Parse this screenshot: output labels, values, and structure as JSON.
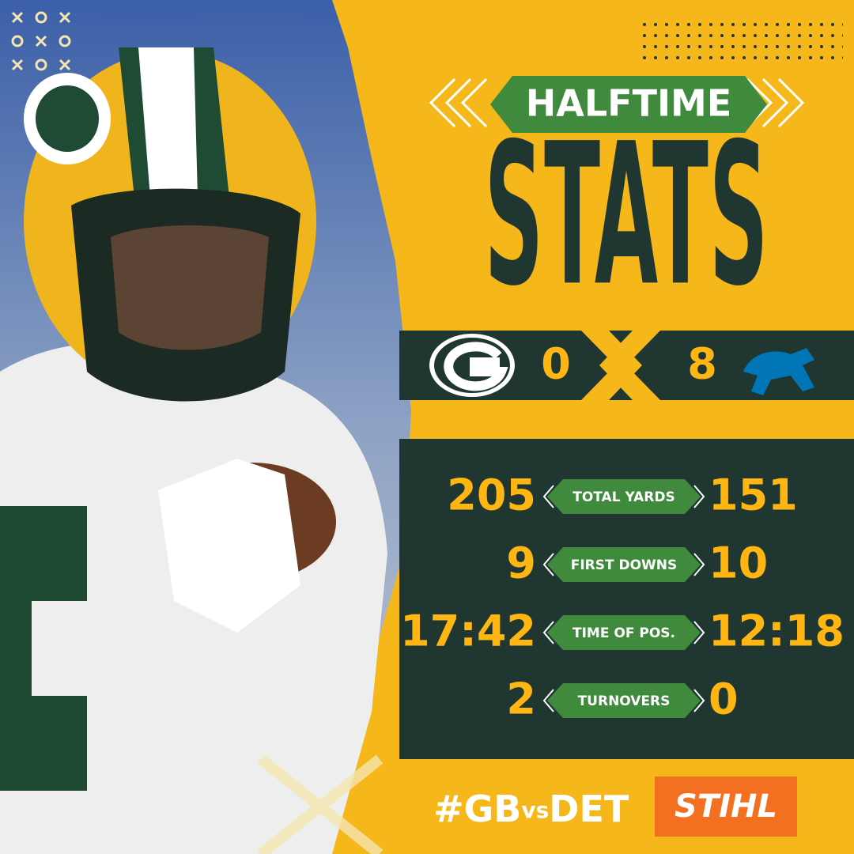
{
  "header": {
    "kicker": "HALFTIME",
    "title": "STATS"
  },
  "score": {
    "home": "0",
    "away": "8"
  },
  "stats": [
    {
      "home": "205",
      "label": "TOTAL YARDS",
      "away": "151"
    },
    {
      "home": "9",
      "label": "FIRST DOWNS",
      "away": "10"
    },
    {
      "home": "17:42",
      "label": "TIME OF POS.",
      "away": "12:18"
    },
    {
      "home": "2",
      "label": "TURNOVERS",
      "away": "0"
    }
  ],
  "footer": {
    "hashtag": [
      "#GB",
      "vs",
      "DET"
    ],
    "sponsor": "STIHL"
  }
}
